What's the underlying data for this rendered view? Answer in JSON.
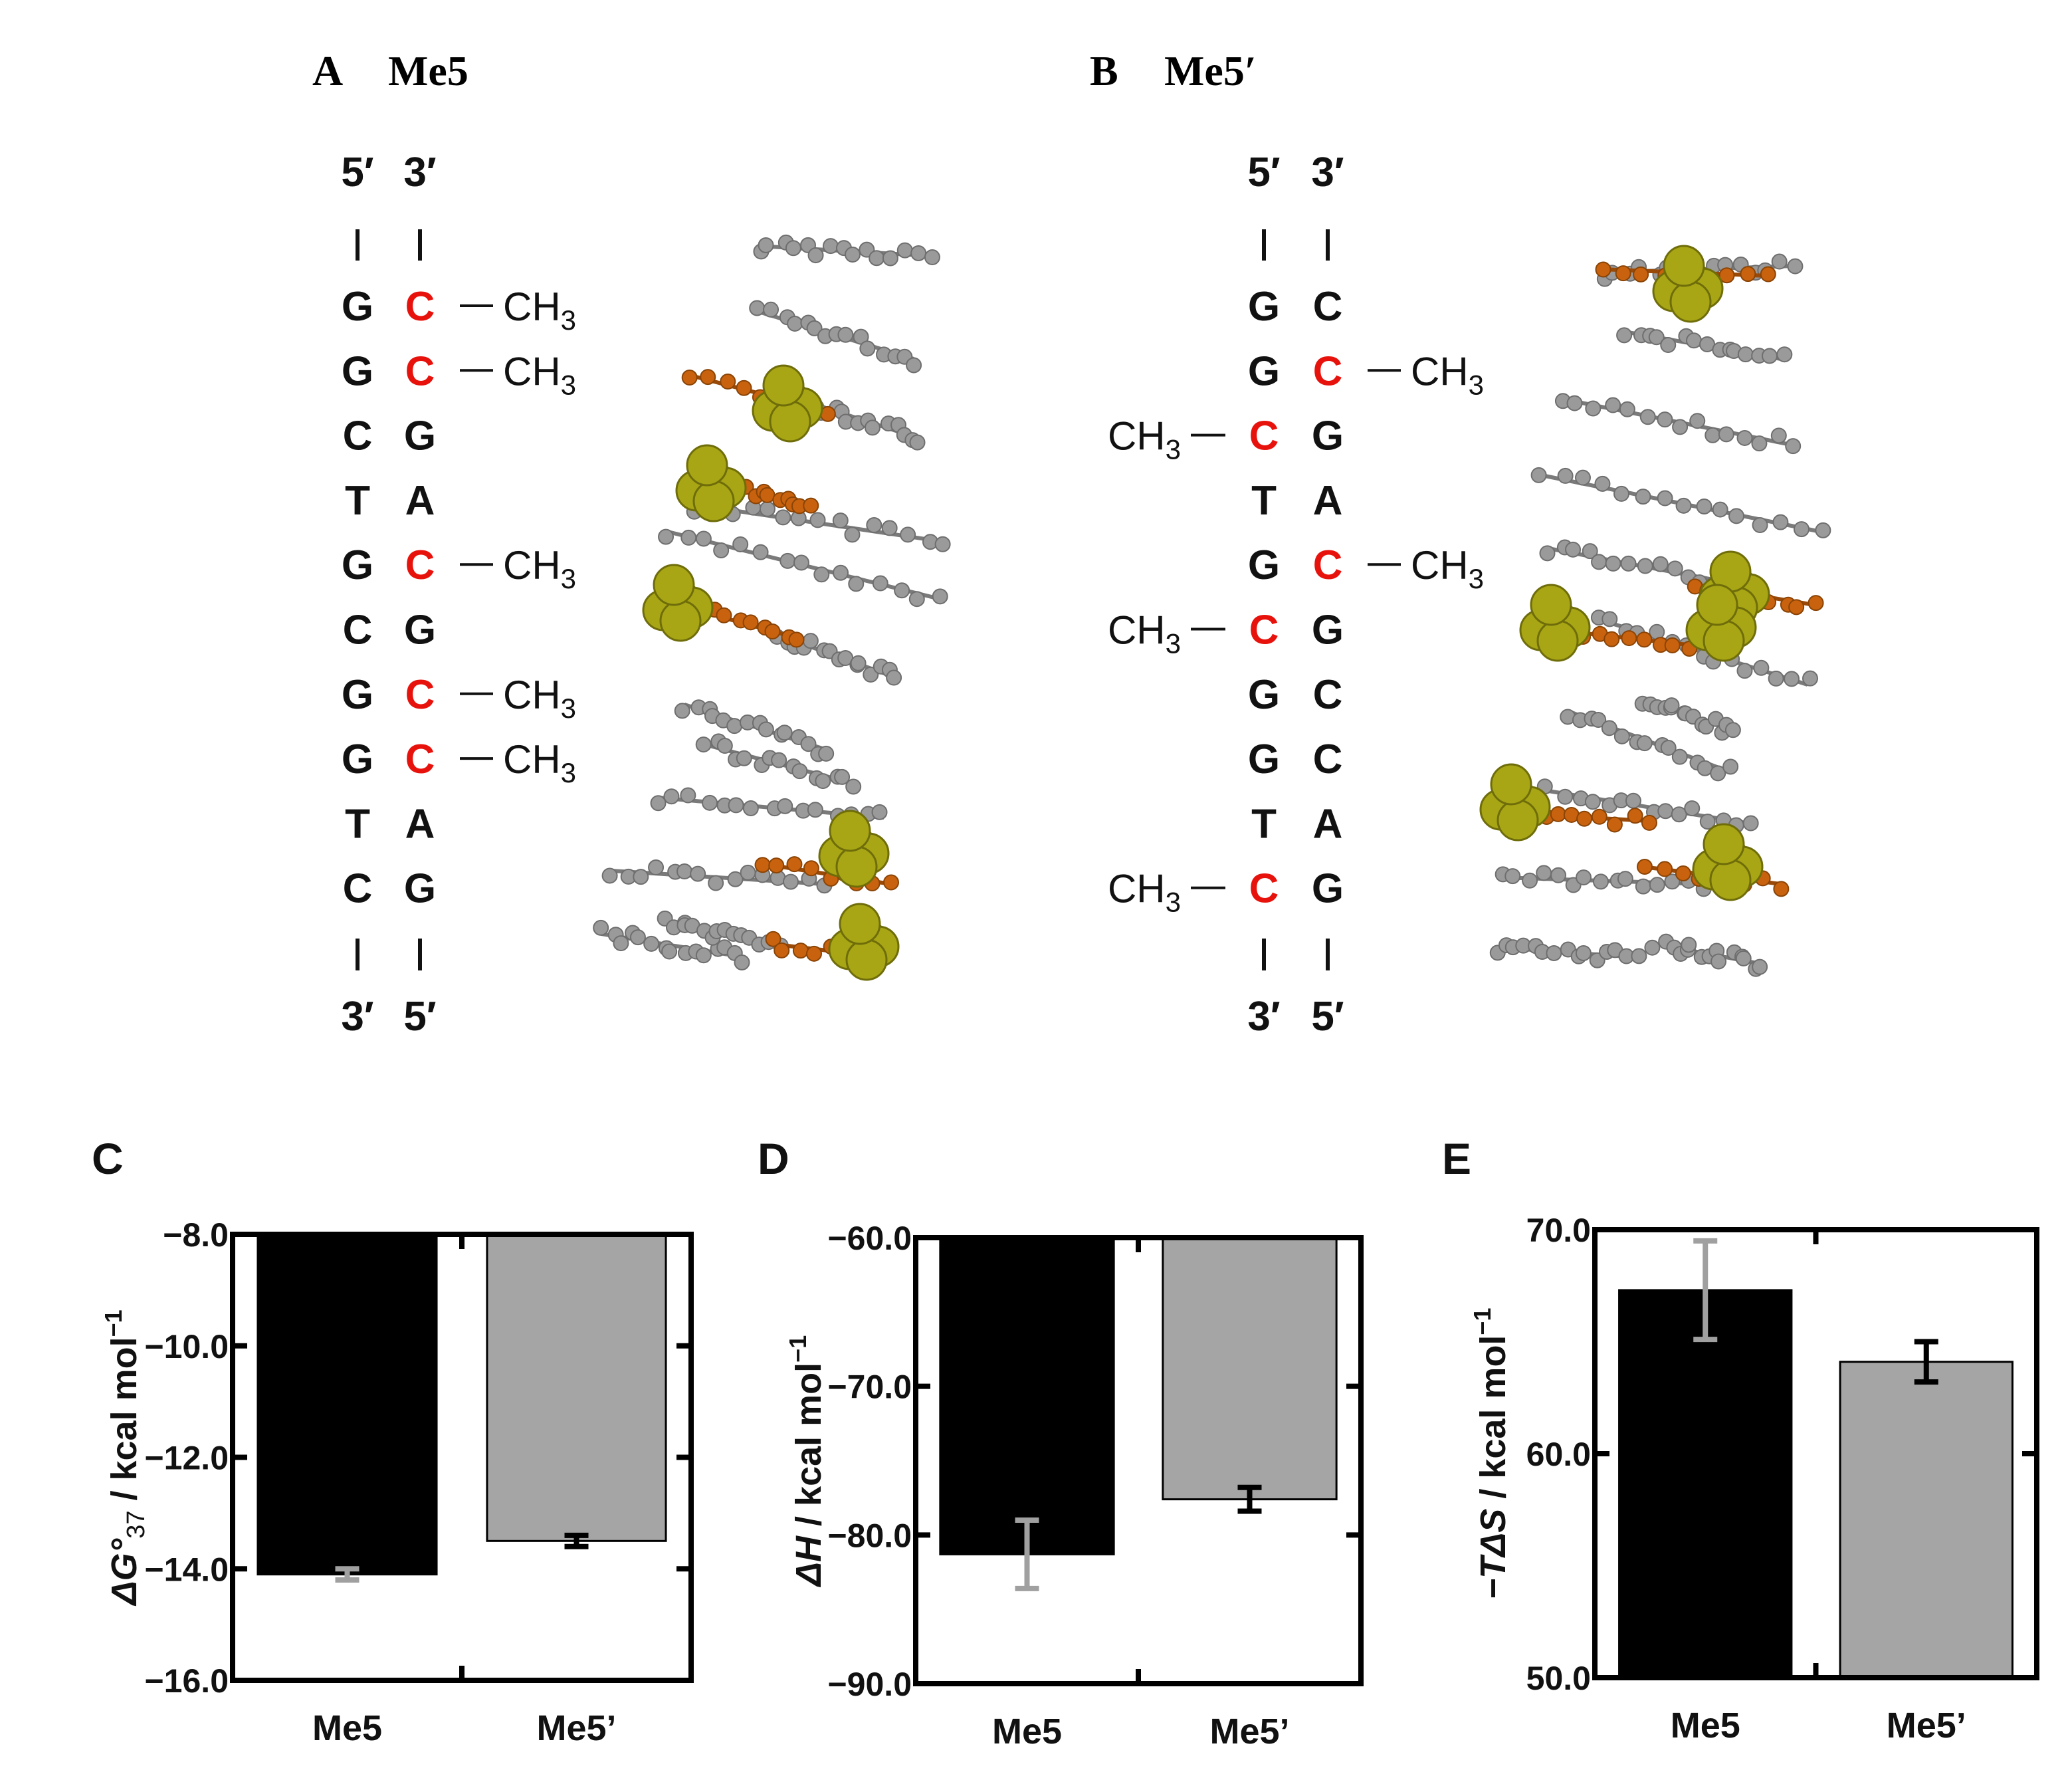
{
  "panel_a": {
    "label": "A",
    "title": "Me5",
    "top_left": "5′",
    "top_right": "3′",
    "bottom_left": "3′",
    "bottom_right": "5′",
    "rows": [
      {
        "left": "G",
        "right": "C",
        "left_methyl": false,
        "right_methyl": true
      },
      {
        "left": "G",
        "right": "C",
        "left_methyl": false,
        "right_methyl": true
      },
      {
        "left": "C",
        "right": "G",
        "left_methyl": false,
        "right_methyl": false
      },
      {
        "left": "T",
        "right": "A",
        "left_methyl": false,
        "right_methyl": false
      },
      {
        "left": "G",
        "right": "C",
        "left_methyl": false,
        "right_methyl": true
      },
      {
        "left": "C",
        "right": "G",
        "left_methyl": false,
        "right_methyl": false
      },
      {
        "left": "G",
        "right": "C",
        "left_methyl": false,
        "right_methyl": true
      },
      {
        "left": "G",
        "right": "C",
        "left_methyl": false,
        "right_methyl": true
      },
      {
        "left": "T",
        "right": "A",
        "left_methyl": false,
        "right_methyl": false
      },
      {
        "left": "C",
        "right": "G",
        "left_methyl": false,
        "right_methyl": false
      }
    ]
  },
  "panel_b": {
    "label": "B",
    "title": "Me5′",
    "top_left": "5′",
    "top_right": "3′",
    "bottom_left": "3′",
    "bottom_right": "5′",
    "rows": [
      {
        "left": "G",
        "right": "C",
        "left_methyl": false,
        "right_methyl": false
      },
      {
        "left": "G",
        "right": "C",
        "left_methyl": false,
        "right_methyl": true
      },
      {
        "left": "C",
        "right": "G",
        "left_methyl": true,
        "right_methyl": false
      },
      {
        "left": "T",
        "right": "A",
        "left_methyl": false,
        "right_methyl": false
      },
      {
        "left": "G",
        "right": "C",
        "left_methyl": false,
        "right_methyl": true
      },
      {
        "left": "C",
        "right": "G",
        "left_methyl": true,
        "right_methyl": false
      },
      {
        "left": "G",
        "right": "C",
        "left_methyl": false,
        "right_methyl": false
      },
      {
        "left": "G",
        "right": "C",
        "left_methyl": false,
        "right_methyl": false
      },
      {
        "left": "T",
        "right": "A",
        "left_methyl": false,
        "right_methyl": false
      },
      {
        "left": "C",
        "right": "G",
        "left_methyl": true,
        "right_methyl": false
      }
    ]
  },
  "methyl_label": "CH",
  "methyl_subscript": "3",
  "colors": {
    "methylated_base": "#e8120c",
    "base": "#111111",
    "bar_me5": "#000000",
    "bar_me5p": "#a5a5a5",
    "err_on_black": "#a0a0a0",
    "err_on_gray": "#000000",
    "atom_gray": "#9a9a9a",
    "atom_orange": "#c8620e",
    "atom_olive": "#a8a614"
  },
  "chart_data": [
    {
      "panel": "C",
      "type": "bar",
      "categories": [
        "Me5",
        "Me5’"
      ],
      "values": [
        -14.1,
        -13.5
      ],
      "errors": [
        0.1,
        0.1
      ],
      "ylabel_main": "ΔG°",
      "ylabel_sub": "37",
      "ylabel_rest": " / kcal mol",
      "ylabel_sup": "−1",
      "ylim": [
        -16.0,
        -8.0
      ],
      "ytick_values": [
        -8.0,
        -10.0,
        -12.0,
        -14.0,
        -16.0
      ],
      "ytick_labels": [
        "−8.0",
        "−10.0",
        "−12.0",
        "−14.0",
        "−16.0"
      ],
      "bars_from_top": true
    },
    {
      "panel": "D",
      "type": "bar",
      "categories": [
        "Me5",
        "Me5’"
      ],
      "values": [
        -81.3,
        -77.6
      ],
      "errors": [
        2.3,
        0.8
      ],
      "ylabel_main": "ΔH",
      "ylabel_sub": "",
      "ylabel_rest": " / kcal mol",
      "ylabel_sup": "−1",
      "ylim": [
        -90.0,
        -60.0
      ],
      "ytick_values": [
        -60.0,
        -70.0,
        -80.0,
        -90.0
      ],
      "ytick_labels": [
        "−60.0",
        "−70.0",
        "−80.0",
        "−90.0"
      ],
      "bars_from_top": true
    },
    {
      "panel": "E",
      "type": "bar",
      "categories": [
        "Me5",
        "Me5’"
      ],
      "values": [
        67.3,
        64.1
      ],
      "errors": [
        2.2,
        0.9
      ],
      "ylabel_main": "−TΔS",
      "ylabel_sub": "",
      "ylabel_rest": " / kcal mol",
      "ylabel_sup": "−1",
      "ylim": [
        50.0,
        70.0
      ],
      "ytick_values": [
        70.0,
        60.0,
        50.0
      ],
      "ytick_labels": [
        "70.0",
        "60.0",
        "50.0"
      ],
      "bars_from_top": false
    }
  ]
}
